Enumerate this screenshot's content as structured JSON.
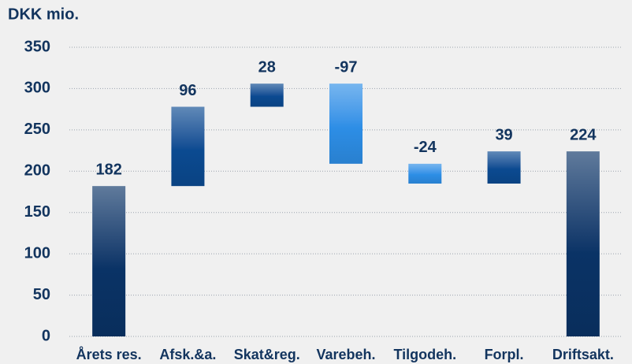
{
  "chart_data": {
    "type": "waterfall",
    "title": "DKK mio.",
    "categories": [
      "Årets res.",
      "Afsk.&a.",
      "Skat&reg.",
      "Varebeh.",
      "Tilgodeh.",
      "Forpl.",
      "Driftsakt."
    ],
    "values": [
      182,
      96,
      28,
      -97,
      -24,
      39,
      224
    ],
    "colors": {
      "total": "#0a3366",
      "increase": "#0b4a91",
      "decrease": "#2d8ee6"
    },
    "ylim": [
      0,
      350
    ],
    "yticks": [
      0,
      50,
      100,
      150,
      200,
      250,
      300,
      350
    ],
    "grid": true
  }
}
